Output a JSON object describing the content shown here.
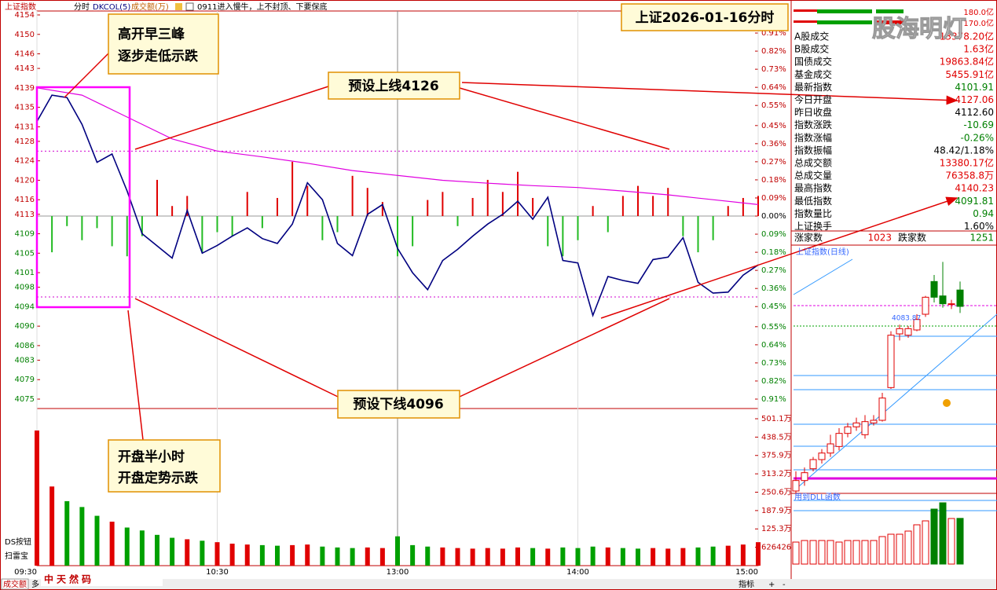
{
  "toolbar": {
    "index": "上证指数",
    "period": "分时",
    "indicator": "DKCOL(5)",
    "volume": "成交额(万)",
    "note": "0911进入慢牛，上不封顶、下要保底"
  },
  "side_labels": {
    "ds": "DS按钮",
    "scan": "扫雷宝"
  },
  "status_bar": {
    "tab": "成交额",
    "more": "多",
    "brand": "中天然码",
    "indicator": "指标",
    "plus": "+",
    "minus": "-"
  },
  "watermark": "股海明灯",
  "capacity": {
    "labels": [
      "180.0亿",
      "170.0亿"
    ]
  },
  "info_panel": {
    "rows": [
      {
        "label": "A股成交",
        "value": "13378.20亿",
        "color": "#e00000"
      },
      {
        "label": "B股成交",
        "value": "1.63亿",
        "color": "#e00000"
      },
      {
        "label": "国债成交",
        "value": "19863.84亿",
        "color": "#e00000"
      },
      {
        "label": "基金成交",
        "value": "5455.91亿",
        "color": "#e00000"
      },
      {
        "label": "最新指数",
        "value": "4101.91",
        "color": "#008000"
      },
      {
        "label": "今日开盘",
        "value": "4127.06",
        "color": "#e00000"
      },
      {
        "label": "昨日收盘",
        "value": "4112.60",
        "color": "#000000"
      },
      {
        "label": "指数涨跌",
        "value": "-10.69",
        "color": "#008000"
      },
      {
        "label": "指数涨幅",
        "value": "-0.26%",
        "color": "#008000"
      },
      {
        "label": "指数振幅",
        "value": "48.42/1.18%",
        "color": "#000000"
      },
      {
        "label": "总成交额",
        "value": "13380.17亿",
        "color": "#e00000"
      },
      {
        "label": "总成交量",
        "value": "76358.8万",
        "color": "#e00000"
      },
      {
        "label": "最高指数",
        "value": "4140.23",
        "color": "#e00000"
      },
      {
        "label": "最低指数",
        "value": "4091.81",
        "color": "#008000"
      },
      {
        "label": "指数量比",
        "value": "0.94",
        "color": "#008000"
      },
      {
        "label": "上证换手",
        "value": "1.60%",
        "color": "#000000"
      }
    ],
    "breadth": {
      "up_label": "涨家数",
      "up": "1023",
      "down_label": "跌家数",
      "down": "1251"
    }
  },
  "annotations": {
    "peaks": [
      "高开早三峰",
      "逐步走低示跌"
    ],
    "open": [
      "开盘半小时",
      "开盘定势示跌"
    ],
    "upper": "预设上线4126",
    "lower": "预设下线4096"
  },
  "chart_data": [
    {
      "type": "line",
      "title": "上证2026-01-16分时",
      "x": [
        "09:30",
        "09:35",
        "09:40",
        "09:45",
        "09:50",
        "09:55",
        "10:00",
        "10:05",
        "10:10",
        "10:15",
        "10:20",
        "10:25",
        "10:30",
        "10:35",
        "10:40",
        "10:45",
        "10:50",
        "10:55",
        "11:00",
        "11:05",
        "11:10",
        "11:15",
        "11:20",
        "11:25",
        "11:30",
        "13:05",
        "13:10",
        "13:15",
        "13:20",
        "13:25",
        "13:30",
        "13:35",
        "13:40",
        "13:45",
        "13:50",
        "13:55",
        "14:00",
        "14:05",
        "14:10",
        "14:15",
        "14:20",
        "14:25",
        "14:30",
        "14:35",
        "14:40",
        "14:45",
        "14:50",
        "14:55",
        "15:00"
      ],
      "series": [
        {
          "color": "#000080",
          "values": [
            4132.1,
            4137.5,
            4137.0,
            4131.5,
            4123.7,
            4125.4,
            4117.8,
            4109.0,
            4106.5,
            4104.0,
            4113.8,
            4105.0,
            4106.6,
            4108.5,
            4110.2,
            4108.0,
            4107.0,
            4111.0,
            4119.5,
            4116.0,
            4107.0,
            4104.5,
            4113.0,
            4115.0,
            4106.0,
            4101.0,
            4097.5,
            4103.5,
            4105.8,
            4108.5,
            4111.0,
            4113.0,
            4115.7,
            4112.0,
            4116.5,
            4103.5,
            4103.0,
            4092.2,
            4100.2,
            4099.4,
            4098.8,
            4103.7,
            4104.2,
            4108.2,
            4099.0,
            4096.8,
            4097.0,
            4100.5,
            4102.6
          ]
        },
        {
          "color": "#e000e0",
          "x": [
            "09:30",
            "09:45",
            "10:00",
            "10:15",
            "10:30",
            "10:45",
            "11:00",
            "11:15",
            "11:30",
            "13:15",
            "13:30",
            "13:45",
            "14:00",
            "14:15",
            "14:30",
            "14:45",
            "15:00"
          ],
          "values": [
            4139,
            4137.5,
            4133,
            4128.5,
            4126,
            4124.8,
            4123.5,
            4122,
            4121,
            4120,
            4119.4,
            4118.9,
            4118.5,
            4117.8,
            4117,
            4116,
            4115
          ]
        }
      ],
      "bars": {
        "axis": "y2",
        "pos_color": "#e00000",
        "neg_color": "#22bb22",
        "values": [
          -0.09,
          -0.18,
          -0.05,
          -0.12,
          -0.06,
          -0.15,
          -0.2,
          -0.1,
          0.18,
          0.05,
          0.1,
          -0.18,
          -0.08,
          -0.1,
          0.12,
          -0.06,
          0.09,
          0.27,
          0.15,
          -0.12,
          -0.08,
          0.2,
          0.14,
          0.07,
          -0.2,
          -0.15,
          0.08,
          0.12,
          -0.05,
          0.09,
          0.18,
          0.12,
          0.22,
          0.09,
          -0.15,
          -0.2,
          -0.12,
          0.05,
          -0.08,
          0.1,
          0.15,
          0.1,
          0.14,
          -0.1,
          -0.18,
          -0.12,
          0.05,
          0.09,
          0.1
        ]
      },
      "reference_lines": [
        4126,
        4096
      ],
      "ylim": [
        4075,
        4154
      ],
      "yticks": [
        4154,
        4150,
        4146,
        4143,
        4139,
        4135,
        4131,
        4128,
        4124,
        4120,
        4116,
        4113,
        4109,
        4105,
        4101,
        4098,
        4094,
        4090,
        4086,
        4083,
        4079,
        4075
      ],
      "y2lim": [
        -0.91,
        1.0
      ],
      "y2ticks": [
        0.91,
        0.82,
        0.73,
        0.64,
        0.55,
        0.45,
        0.36,
        0.27,
        0.18,
        0.09,
        {
          "value": 0,
          "label": "0.00%"
        },
        {
          "value": -0.09,
          "label": "0.09%"
        },
        {
          "value": -0.18,
          "label": "0.18%"
        },
        {
          "value": -0.27,
          "label": "0.27%"
        },
        {
          "value": -0.36,
          "label": "0.36%"
        },
        {
          "value": -0.45,
          "label": "0.45%"
        },
        {
          "value": -0.55,
          "label": "0.55%"
        },
        {
          "value": -0.64,
          "label": "0.64%"
        },
        {
          "value": -0.73,
          "label": "0.73%"
        },
        {
          "value": -0.82,
          "label": "0.82%"
        },
        {
          "value": -0.91,
          "label": "0.91%"
        }
      ],
      "y2tick_format": "%",
      "xticks": [
        "09:30",
        "10:30",
        "13:00",
        "14:00",
        "15:00"
      ],
      "grid": false
    },
    {
      "type": "bar",
      "up_color": "#e00000",
      "down_color": "#00a000",
      "values": [
        461,
        270,
        220,
        200,
        170,
        150,
        130,
        120,
        105,
        95,
        90,
        85,
        80,
        75,
        72,
        70,
        68,
        70,
        72,
        65,
        62,
        60,
        62,
        60,
        100,
        70,
        65,
        62,
        60,
        58,
        60,
        58,
        62,
        60,
        58,
        62,
        60,
        65,
        62,
        60,
        58,
        60,
        58,
        60,
        62,
        65,
        68,
        72,
        80
      ],
      "ylim": [
        0,
        536
      ],
      "yticks": [
        {
          "value": 62.6426,
          "label": "626426"
        },
        {
          "value": 125.3,
          "label": "125.3万"
        },
        {
          "value": 187.9,
          "label": "187.9万"
        },
        {
          "value": 250.6,
          "label": "250.6万"
        },
        {
          "value": 313.2,
          "label": "313.2万"
        },
        {
          "value": 375.9,
          "label": "375.9万"
        },
        {
          "value": 438.5,
          "label": "438.5万"
        },
        {
          "value": 501.1,
          "label": "501.1万"
        }
      ]
    },
    {
      "type": "candlestick",
      "title": "上证指数(日线)",
      "up_color": "#e00000",
      "down_color": "#008000",
      "open": [
        3820,
        3836,
        3854,
        3868,
        3878,
        3888,
        3908,
        3918,
        3906,
        3924,
        3928,
        3978,
        4060,
        4058,
        4066,
        4090,
        4140,
        4118,
        4106,
        4127
      ],
      "close": [
        3836,
        3848,
        3868,
        3878,
        3892,
        3908,
        3918,
        3924,
        3926,
        3928,
        3962,
        4058,
        4068,
        4068,
        4082,
        4116,
        4116,
        4106,
        4106,
        4102
      ],
      "high": [
        3850,
        3856,
        3872,
        3884,
        3906,
        3916,
        3924,
        3932,
        3936,
        3936,
        3970,
        4064,
        4074,
        4072,
        4090,
        4118,
        4150,
        4170,
        4112,
        4140
      ],
      "low": [
        3814,
        3828,
        3850,
        3862,
        3872,
        3882,
        3902,
        3912,
        3900,
        3920,
        3926,
        3976,
        4050,
        4054,
        4064,
        4086,
        4108,
        4100,
        4098,
        4092
      ],
      "price_label": 4083.87,
      "ylim": [
        3814,
        4186
      ]
    },
    {
      "type": "bar",
      "title": "用到DLL函数",
      "values": [
        6440,
        6900,
        6900,
        6900,
        6900,
        6440,
        6900,
        6900,
        6900,
        6900,
        8050,
        8740,
        8740,
        9660,
        11500,
        12650,
        16100,
        17940,
        13340,
        13380
      ],
      "ylim": [
        0,
        20240
      ]
    }
  ]
}
